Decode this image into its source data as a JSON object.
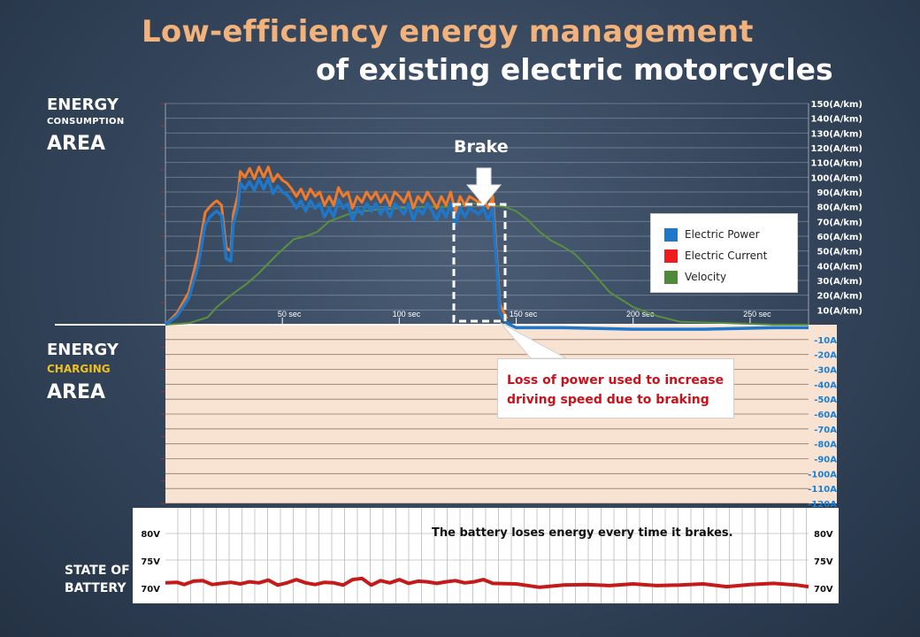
{
  "title": {
    "line1": "Low-efficiency energy management",
    "line2": "of existing electric motorcycles"
  },
  "areas": {
    "consumption": {
      "line1": "ENERGY",
      "line2": "CONSUMPTION",
      "line3": "AREA"
    },
    "charging": {
      "line1": "ENERGY",
      "line2": "CHARGING",
      "line3": "AREA"
    },
    "battery": {
      "line1": "STATE OF",
      "line2": "BATTERY"
    }
  },
  "brake_label": "Brake",
  "annotation": {
    "line1": "Loss of power used to increase",
    "line2": "driving speed due to braking"
  },
  "battery_message": "The battery loses energy every time it brakes.",
  "legend": [
    {
      "label": "Electric Power",
      "color": "#1e77c9"
    },
    {
      "label": "Electric Current",
      "color": "#ee1c1c"
    },
    {
      "label": "Velocity",
      "color": "#4e8a3a"
    }
  ],
  "colors": {
    "power": "#1e77c9",
    "current": "#f07a2a",
    "velocity": "#5b8f3e",
    "battery": "#c41a1a",
    "axis_red": "#d93030",
    "axis_blue": "#1a7fd0",
    "charging_bg": "#f8e3d3"
  },
  "chart_data": {
    "type": "line",
    "x_ticks": [
      "50 sec",
      "100 sec",
      "150 sec",
      "200 sec",
      "250 sec"
    ],
    "x_tick_values": [
      50,
      100,
      150,
      200,
      250
    ],
    "xlim": [
      0,
      275
    ],
    "right_axis_top": [
      "150(A/km)",
      "140(A/km)",
      "130(A/km)",
      "120(A/km)",
      "110(A/km)",
      "100(A/km)",
      "90(A/km)",
      "80(A/km)",
      "70(A/km)",
      "60(A/km)",
      "50(A/km)",
      "40(A/km)",
      "30(A/km)",
      "20(A/km)",
      "10(A/km)"
    ],
    "right_axis_top_values": [
      150,
      140,
      130,
      120,
      110,
      100,
      90,
      80,
      70,
      60,
      50,
      40,
      30,
      20,
      10
    ],
    "ylim_top": [
      0,
      150
    ],
    "right_axis_charging": [
      "-10A",
      "-20A",
      "-30A",
      "-40A",
      "-50A",
      "-60A",
      "-70A",
      "-80A",
      "-90A",
      "-100A",
      "-110A",
      "-120A"
    ],
    "right_axis_charging_values": [
      -10,
      -20,
      -30,
      -40,
      -50,
      -60,
      -70,
      -80,
      -90,
      -100,
      -110,
      -120
    ],
    "ylim_charging": [
      -120,
      0
    ],
    "battery_axis": [
      "80V",
      "75V",
      "70V"
    ],
    "battery_axis_values": [
      80,
      75,
      70
    ],
    "series": [
      {
        "name": "Electric Power",
        "key": "power",
        "x": [
          0,
          5,
          10,
          14,
          17,
          19,
          21,
          22,
          24,
          26,
          28,
          29,
          31,
          32,
          34,
          36,
          38,
          40,
          42,
          44,
          46,
          48,
          50,
          52,
          54,
          56,
          58,
          60,
          62,
          64,
          66,
          68,
          70,
          72,
          74,
          76,
          78,
          80,
          82,
          84,
          86,
          88,
          90,
          92,
          94,
          96,
          98,
          100,
          102,
          104,
          106,
          108,
          110,
          112,
          114,
          116,
          118,
          120,
          122,
          124,
          126,
          128,
          130,
          132,
          134,
          136,
          138,
          140,
          143,
          146,
          150,
          170,
          200,
          230,
          260,
          275
        ],
        "y": [
          0,
          6,
          18,
          40,
          68,
          73,
          76,
          77,
          74,
          45,
          43,
          68,
          80,
          96,
          92,
          97,
          91,
          99,
          92,
          99,
          89,
          94,
          90,
          88,
          84,
          79,
          84,
          77,
          84,
          79,
          82,
          73,
          79,
          73,
          85,
          79,
          82,
          71,
          79,
          75,
          82,
          77,
          82,
          75,
          80,
          73,
          82,
          79,
          75,
          82,
          71,
          79,
          75,
          82,
          77,
          71,
          79,
          73,
          82,
          68,
          79,
          73,
          79,
          77,
          75,
          79,
          71,
          79,
          8,
          1,
          -2,
          -2,
          -3,
          -3,
          -2,
          -2
        ]
      },
      {
        "name": "Electric Current",
        "key": "current",
        "x": [
          0,
          5,
          10,
          14,
          17,
          19,
          21,
          22,
          24,
          26,
          28,
          29,
          31,
          32,
          34,
          36,
          38,
          40,
          42,
          44,
          46,
          48,
          50,
          52,
          54,
          56,
          58,
          60,
          62,
          64,
          66,
          68,
          70,
          72,
          74,
          76,
          78,
          80,
          82,
          84,
          86,
          88,
          90,
          92,
          94,
          96,
          98,
          100,
          102,
          104,
          106,
          108,
          110,
          112,
          114,
          116,
          118,
          120,
          122,
          124,
          126,
          128,
          130,
          132,
          134,
          136,
          138,
          140,
          143,
          146
        ],
        "y": [
          0,
          8,
          22,
          48,
          76,
          80,
          83,
          84,
          81,
          52,
          50,
          75,
          88,
          104,
          100,
          106,
          99,
          107,
          100,
          107,
          97,
          102,
          98,
          96,
          92,
          87,
          92,
          85,
          92,
          87,
          90,
          81,
          87,
          81,
          93,
          87,
          90,
          79,
          87,
          83,
          90,
          85,
          90,
          83,
          88,
          81,
          90,
          87,
          83,
          90,
          79,
          87,
          83,
          90,
          85,
          79,
          87,
          81,
          90,
          76,
          87,
          81,
          87,
          85,
          83,
          87,
          79,
          87,
          14,
          4
        ]
      },
      {
        "name": "Velocity",
        "key": "velocity",
        "x": [
          0,
          10,
          18,
          22,
          28,
          35,
          40,
          48,
          55,
          60,
          65,
          70,
          80,
          90,
          100,
          110,
          120,
          130,
          135,
          140,
          145,
          150,
          155,
          160,
          165,
          170,
          175,
          180,
          185,
          190,
          200,
          210,
          220,
          240,
          260,
          275
        ],
        "y": [
          0,
          1,
          5,
          12,
          20,
          28,
          35,
          48,
          58,
          60,
          63,
          70,
          76,
          78,
          79,
          80,
          80,
          82,
          82,
          81,
          80,
          77,
          71,
          63,
          57,
          53,
          48,
          40,
          31,
          22,
          12,
          6,
          2,
          1,
          0,
          0
        ]
      },
      {
        "name": "State of battery",
        "key": "battery",
        "x": [
          0,
          5,
          8,
          12,
          16,
          20,
          24,
          28,
          32,
          36,
          40,
          44,
          48,
          52,
          56,
          60,
          64,
          68,
          72,
          76,
          80,
          84,
          88,
          92,
          96,
          100,
          104,
          108,
          112,
          116,
          120,
          124,
          128,
          132,
          136,
          140,
          150,
          160,
          170,
          180,
          190,
          200,
          210,
          220,
          230,
          240,
          250,
          260,
          270,
          275
        ],
        "y": [
          71.0,
          71.1,
          70.7,
          71.3,
          71.4,
          70.7,
          70.9,
          71.1,
          70.8,
          71.2,
          71.0,
          71.5,
          70.6,
          71.0,
          71.6,
          71.0,
          70.7,
          71.1,
          71.0,
          70.6,
          71.6,
          71.8,
          70.6,
          71.4,
          71.0,
          71.6,
          70.9,
          71.3,
          71.2,
          70.9,
          71.2,
          71.4,
          71.0,
          71.2,
          71.6,
          70.9,
          70.8,
          70.2,
          70.6,
          70.7,
          70.5,
          70.8,
          70.5,
          70.6,
          70.8,
          70.3,
          70.7,
          70.9,
          70.6,
          70.3
        ]
      }
    ]
  }
}
